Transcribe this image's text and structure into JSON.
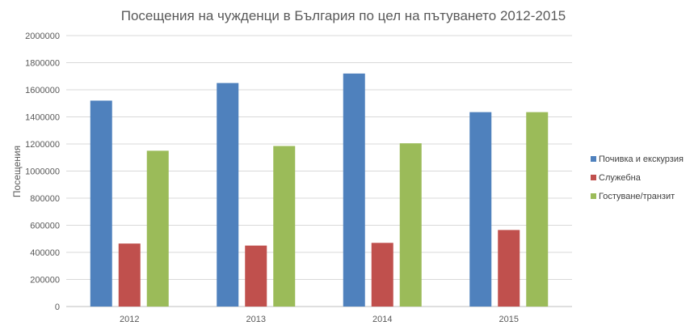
{
  "chart_data": {
    "type": "bar",
    "title": "Посещения на чужденци в България по цел на пътуването 2012-2015",
    "xlabel": "",
    "ylabel": "Посещения",
    "ylim": [
      0,
      2000000
    ],
    "yticks": [
      "0",
      "200000",
      "400000",
      "600000",
      "800000",
      "1000000",
      "1200000",
      "1400000",
      "1600000",
      "1800000",
      "2000000"
    ],
    "categories": [
      "2012",
      "2013",
      "2014",
      "2015"
    ],
    "series": [
      {
        "name": "Почивка и екскурзия",
        "color": "#4f81bd",
        "values": [
          1520000,
          1650000,
          1720000,
          1435000
        ]
      },
      {
        "name": "Служебна",
        "color": "#c0504d",
        "values": [
          465000,
          450000,
          470000,
          565000
        ]
      },
      {
        "name": "Гостуване/транзит",
        "color": "#9bbb59",
        "values": [
          1150000,
          1185000,
          1205000,
          1435000
        ]
      }
    ],
    "grid": true,
    "legend_position": "right"
  }
}
